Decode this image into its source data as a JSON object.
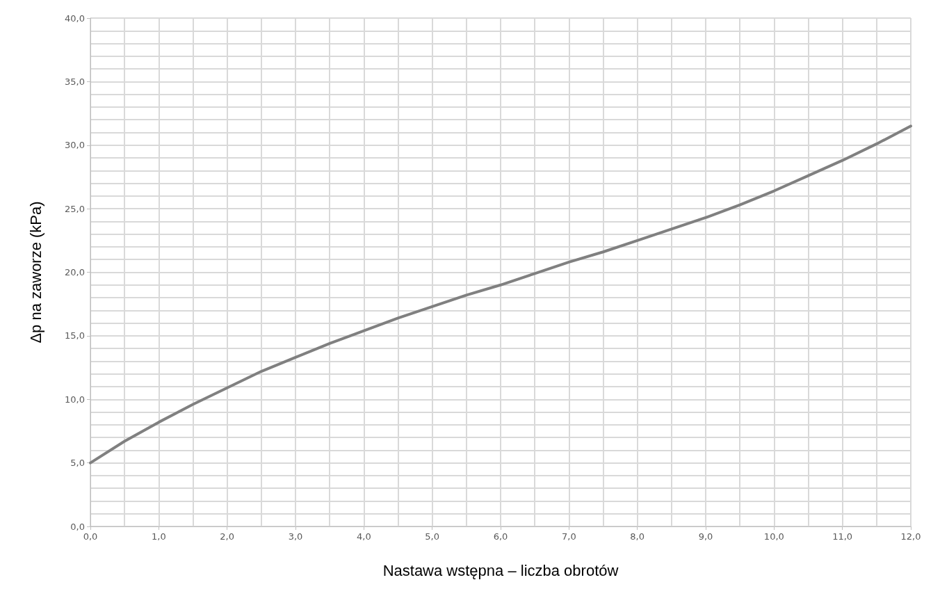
{
  "chart_data": {
    "type": "line",
    "xlabel": "Nastawa wstępna – liczba obrotów",
    "ylabel": "Δp na zaworze (kPa)",
    "x": [
      0,
      0.5,
      1,
      1.5,
      2,
      2.5,
      3,
      3.5,
      4,
      4.5,
      5,
      5.5,
      6,
      6.5,
      7,
      7.5,
      8,
      8.5,
      9,
      9.5,
      10,
      10.5,
      11,
      11.5,
      12
    ],
    "series": [
      {
        "color": "#808080",
        "values": [
          5.0,
          6.7,
          8.2,
          9.6,
          10.9,
          12.2,
          13.3,
          14.4,
          15.4,
          16.4,
          17.3,
          18.2,
          19.0,
          19.9,
          20.8,
          21.6,
          22.5,
          23.4,
          24.3,
          25.3,
          26.4,
          27.6,
          28.8,
          30.1,
          31.5
        ]
      }
    ],
    "xlim": [
      0,
      12
    ],
    "ylim": [
      0,
      40
    ],
    "xticks": [
      {
        "value": 0,
        "label": "0,0"
      },
      {
        "value": 1,
        "label": "1,0"
      },
      {
        "value": 2,
        "label": "2,0"
      },
      {
        "value": 3,
        "label": "3,0"
      },
      {
        "value": 4,
        "label": "4,0"
      },
      {
        "value": 5,
        "label": "5,0"
      },
      {
        "value": 6,
        "label": "6,0"
      },
      {
        "value": 7,
        "label": "7,0"
      },
      {
        "value": 8,
        "label": "8,0"
      },
      {
        "value": 9,
        "label": "9,0"
      },
      {
        "value": 10,
        "label": "10,0"
      },
      {
        "value": 11,
        "label": "11,0"
      },
      {
        "value": 12,
        "label": "12,0"
      }
    ],
    "yticks": [
      {
        "value": 0,
        "label": "0,0"
      },
      {
        "value": 5,
        "label": "5,0"
      },
      {
        "value": 10,
        "label": "10,0"
      },
      {
        "value": 15,
        "label": "15,0"
      },
      {
        "value": 20,
        "label": "20,0"
      },
      {
        "value": 25,
        "label": "25,0"
      },
      {
        "value": 30,
        "label": "30,0"
      },
      {
        "value": 35,
        "label": "35,0"
      },
      {
        "value": 40,
        "label": "40,0"
      }
    ],
    "grid": true,
    "marker": "none",
    "line_style": "solid"
  }
}
